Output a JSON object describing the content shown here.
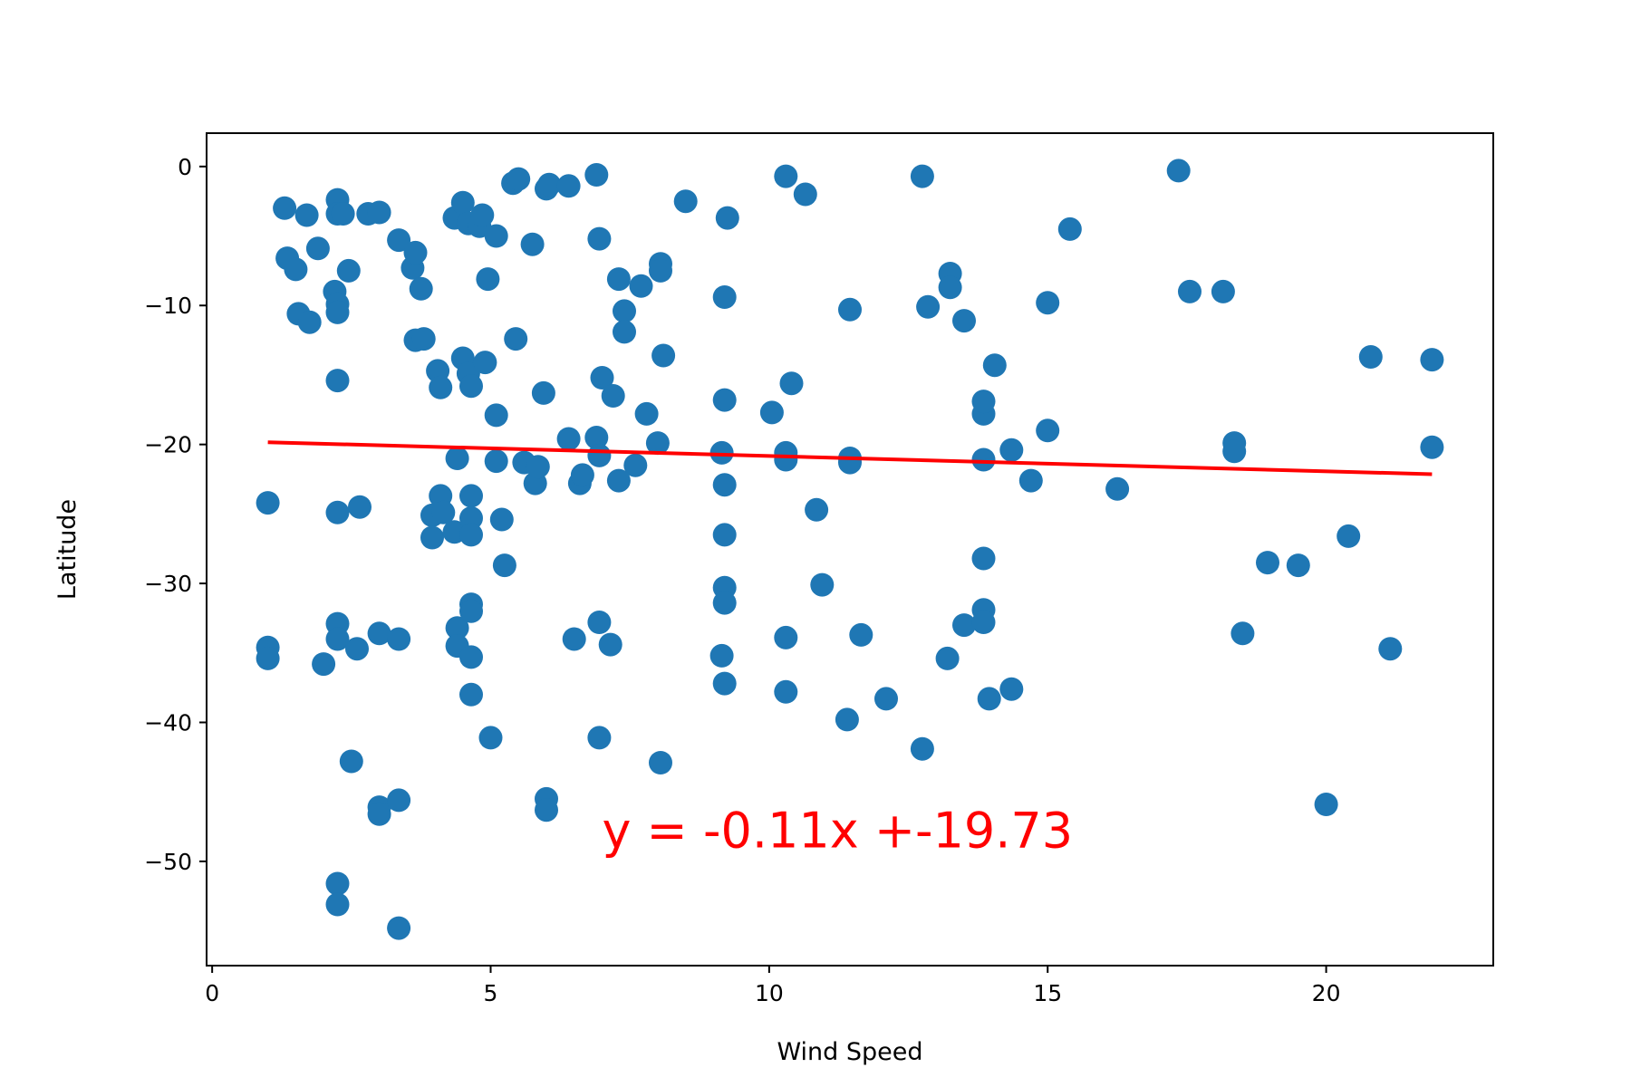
{
  "chart_data": {
    "type": "scatter",
    "title": "",
    "xlabel": "Wind Speed",
    "ylabel": "Latitude",
    "xlim": [
      -0.1,
      23.0
    ],
    "ylim": [
      -57.5,
      2.4
    ],
    "xticks": [
      0,
      5,
      10,
      15,
      20
    ],
    "yticks": [
      0,
      -10,
      -20,
      -30,
      -40,
      -50
    ],
    "ytick_labels": [
      "0",
      "−10",
      "−20",
      "−30",
      "−40",
      "−50"
    ],
    "grid": false,
    "legend": "none",
    "colors": {
      "points": "#1f77b4",
      "regression": "#ff0000"
    },
    "regression": {
      "slope": -0.11,
      "intercept": -19.73,
      "x_range": [
        1.0,
        21.9
      ],
      "label": "y = -0.11x +-19.73",
      "label_position_data": [
        7.0,
        -49.0
      ]
    },
    "points": [
      [
        1.0,
        -24.2
      ],
      [
        1.0,
        -34.6
      ],
      [
        1.0,
        -35.4
      ],
      [
        1.3,
        -3.0
      ],
      [
        1.35,
        -6.6
      ],
      [
        1.5,
        -7.4
      ],
      [
        1.55,
        -10.6
      ],
      [
        1.7,
        -3.5
      ],
      [
        1.75,
        -11.2
      ],
      [
        1.9,
        -5.9
      ],
      [
        2.0,
        -35.8
      ],
      [
        2.2,
        -9.0
      ],
      [
        2.25,
        -2.4
      ],
      [
        2.25,
        -3.4
      ],
      [
        2.25,
        -9.9
      ],
      [
        2.25,
        -10.5
      ],
      [
        2.25,
        -15.4
      ],
      [
        2.25,
        -24.9
      ],
      [
        2.25,
        -32.9
      ],
      [
        2.25,
        -34.0
      ],
      [
        2.25,
        -51.6
      ],
      [
        2.25,
        -53.1
      ],
      [
        2.35,
        -3.4
      ],
      [
        2.45,
        -7.5
      ],
      [
        2.5,
        -42.8
      ],
      [
        2.6,
        -34.7
      ],
      [
        2.65,
        -24.5
      ],
      [
        2.8,
        -3.4
      ],
      [
        3.0,
        -3.3
      ],
      [
        3.0,
        -33.6
      ],
      [
        3.0,
        -46.1
      ],
      [
        3.0,
        -46.6
      ],
      [
        3.35,
        -5.3
      ],
      [
        3.35,
        -34.0
      ],
      [
        3.35,
        -45.6
      ],
      [
        3.35,
        -54.8
      ],
      [
        3.6,
        -7.3
      ],
      [
        3.65,
        -6.2
      ],
      [
        3.65,
        -12.5
      ],
      [
        3.75,
        -8.8
      ],
      [
        3.8,
        -12.4
      ],
      [
        3.95,
        -25.1
      ],
      [
        3.95,
        -26.7
      ],
      [
        4.05,
        -14.7
      ],
      [
        4.1,
        -15.9
      ],
      [
        4.1,
        -23.7
      ],
      [
        4.15,
        -24.9
      ],
      [
        4.35,
        -3.7
      ],
      [
        4.35,
        -26.3
      ],
      [
        4.4,
        -21.0
      ],
      [
        4.4,
        -33.2
      ],
      [
        4.4,
        -34.5
      ],
      [
        4.5,
        -2.6
      ],
      [
        4.5,
        -13.8
      ],
      [
        4.6,
        -4.1
      ],
      [
        4.6,
        -14.9
      ],
      [
        4.65,
        -15.8
      ],
      [
        4.65,
        -23.7
      ],
      [
        4.65,
        -25.3
      ],
      [
        4.65,
        -26.5
      ],
      [
        4.65,
        -31.5
      ],
      [
        4.65,
        -32.0
      ],
      [
        4.65,
        -35.3
      ],
      [
        4.65,
        -38.0
      ],
      [
        4.8,
        -4.3
      ],
      [
        4.85,
        -3.5
      ],
      [
        4.9,
        -14.1
      ],
      [
        4.95,
        -8.1
      ],
      [
        5.0,
        -41.1
      ],
      [
        5.1,
        -5.0
      ],
      [
        5.1,
        -17.9
      ],
      [
        5.1,
        -21.2
      ],
      [
        5.2,
        -25.4
      ],
      [
        5.25,
        -28.7
      ],
      [
        5.4,
        -1.2
      ],
      [
        5.45,
        -12.4
      ],
      [
        5.5,
        -0.9
      ],
      [
        5.6,
        -21.3
      ],
      [
        5.75,
        -5.6
      ],
      [
        5.8,
        -22.8
      ],
      [
        5.85,
        -21.6
      ],
      [
        5.95,
        -16.3
      ],
      [
        6.0,
        -1.6
      ],
      [
        6.0,
        -45.5
      ],
      [
        6.0,
        -46.3
      ],
      [
        6.05,
        -1.3
      ],
      [
        6.4,
        -1.4
      ],
      [
        6.4,
        -19.6
      ],
      [
        6.5,
        -34.0
      ],
      [
        6.6,
        -22.8
      ],
      [
        6.65,
        -22.2
      ],
      [
        6.9,
        -0.6
      ],
      [
        6.9,
        -19.5
      ],
      [
        6.95,
        -5.2
      ],
      [
        6.95,
        -20.8
      ],
      [
        6.95,
        -32.8
      ],
      [
        6.95,
        -41.1
      ],
      [
        7.0,
        -15.2
      ],
      [
        7.15,
        -34.4
      ],
      [
        7.2,
        -16.5
      ],
      [
        7.3,
        -8.1
      ],
      [
        7.3,
        -22.6
      ],
      [
        7.4,
        -10.4
      ],
      [
        7.4,
        -11.9
      ],
      [
        7.6,
        -21.5
      ],
      [
        7.7,
        -8.6
      ],
      [
        7.8,
        -17.8
      ],
      [
        8.0,
        -19.9
      ],
      [
        8.05,
        -7.0
      ],
      [
        8.05,
        -7.5
      ],
      [
        8.05,
        -42.9
      ],
      [
        8.1,
        -13.6
      ],
      [
        8.5,
        -2.5
      ],
      [
        9.15,
        -35.2
      ],
      [
        9.15,
        -20.6
      ],
      [
        9.2,
        -16.8
      ],
      [
        9.2,
        -9.4
      ],
      [
        9.2,
        -22.9
      ],
      [
        9.2,
        -26.5
      ],
      [
        9.2,
        -30.3
      ],
      [
        9.2,
        -31.4
      ],
      [
        9.2,
        -37.2
      ],
      [
        9.25,
        -3.7
      ],
      [
        10.05,
        -17.7
      ],
      [
        10.3,
        -0.7
      ],
      [
        10.3,
        -20.6
      ],
      [
        10.3,
        -21.1
      ],
      [
        10.3,
        -33.9
      ],
      [
        10.3,
        -37.8
      ],
      [
        10.4,
        -15.6
      ],
      [
        10.65,
        -2.0
      ],
      [
        10.85,
        -24.7
      ],
      [
        10.95,
        -30.1
      ],
      [
        11.4,
        -39.8
      ],
      [
        11.45,
        -10.3
      ],
      [
        11.45,
        -21.0
      ],
      [
        11.45,
        -21.3
      ],
      [
        11.65,
        -33.7
      ],
      [
        12.1,
        -38.3
      ],
      [
        12.75,
        -0.7
      ],
      [
        12.75,
        -41.9
      ],
      [
        12.85,
        -10.1
      ],
      [
        13.2,
        -35.4
      ],
      [
        13.25,
        -7.7
      ],
      [
        13.25,
        -8.7
      ],
      [
        13.5,
        -33.0
      ],
      [
        13.5,
        -11.1
      ],
      [
        13.85,
        -17.8
      ],
      [
        13.85,
        -16.9
      ],
      [
        13.85,
        -21.1
      ],
      [
        13.85,
        -28.2
      ],
      [
        13.85,
        -31.9
      ],
      [
        13.85,
        -32.8
      ],
      [
        13.95,
        -38.3
      ],
      [
        14.05,
        -14.3
      ],
      [
        14.35,
        -37.6
      ],
      [
        14.35,
        -20.4
      ],
      [
        14.7,
        -22.6
      ],
      [
        15.0,
        -9.8
      ],
      [
        15.0,
        -19.0
      ],
      [
        15.4,
        -4.5
      ],
      [
        16.25,
        -23.2
      ],
      [
        17.35,
        -0.3
      ],
      [
        17.55,
        -9.0
      ],
      [
        18.15,
        -9.0
      ],
      [
        18.35,
        -19.9
      ],
      [
        18.35,
        -20.5
      ],
      [
        18.5,
        -33.6
      ],
      [
        18.95,
        -28.5
      ],
      [
        19.5,
        -28.7
      ],
      [
        20.0,
        -45.9
      ],
      [
        20.4,
        -26.6
      ],
      [
        20.8,
        -13.7
      ],
      [
        21.15,
        -34.7
      ],
      [
        21.9,
        -13.9
      ],
      [
        21.9,
        -20.2
      ]
    ]
  }
}
